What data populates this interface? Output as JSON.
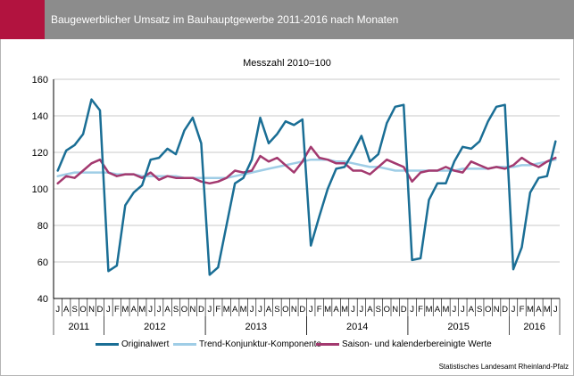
{
  "header": {
    "title": "Baugewerblicher Umsatz im Bauhauptgewerbe 2011-2016 nach Monaten",
    "bar_color": "#8c8c8c",
    "accent_color": "#b2133f"
  },
  "source": "Statistisches Landesamt Rheinland-Pfalz",
  "chart_data": {
    "type": "line",
    "subtitle": "Messzahl 2010=100",
    "ylim": [
      40,
      160
    ],
    "yticks": [
      40,
      60,
      80,
      100,
      120,
      140,
      160
    ],
    "grid": true,
    "legend_position": "bottom",
    "month_labels": [
      "J",
      "A",
      "S",
      "O",
      "N",
      "D",
      "J",
      "F",
      "M",
      "A",
      "M",
      "J",
      "J",
      "A",
      "S",
      "O",
      "N",
      "D",
      "J",
      "F",
      "M",
      "A",
      "M",
      "J",
      "J",
      "A",
      "S",
      "O",
      "N",
      "D",
      "J",
      "F",
      "M",
      "A",
      "M",
      "J",
      "J",
      "A",
      "S",
      "O",
      "N",
      "D",
      "J",
      "F",
      "M",
      "A",
      "M",
      "J",
      "J",
      "A",
      "S",
      "O",
      "N",
      "D",
      "J",
      "F",
      "M",
      "A",
      "M",
      "J"
    ],
    "year_labels": [
      {
        "label": "2011",
        "start": 0,
        "count": 6
      },
      {
        "label": "2012",
        "start": 6,
        "count": 12
      },
      {
        "label": "2013",
        "start": 18,
        "count": 12
      },
      {
        "label": "2014",
        "start": 30,
        "count": 12
      },
      {
        "label": "2015",
        "start": 42,
        "count": 12
      },
      {
        "label": "2016",
        "start": 54,
        "count": 6
      }
    ],
    "series": [
      {
        "name": "Originalwert",
        "color": "#1a6e95",
        "values": [
          110,
          121,
          124,
          130,
          149,
          143,
          55,
          58,
          91,
          98,
          102,
          116,
          117,
          122,
          119,
          132,
          139,
          125,
          53,
          57,
          80,
          103,
          106,
          116,
          139,
          125,
          130,
          137,
          135,
          138,
          69,
          85,
          100,
          111,
          112,
          120,
          129,
          115,
          119,
          136,
          145,
          146,
          61,
          62,
          94,
          103,
          103,
          115,
          123,
          122,
          126,
          137,
          145,
          146,
          56,
          68,
          98,
          106,
          107,
          126
        ]
      },
      {
        "name": "Trend-Konjunktur-Komponente",
        "color": "#9fcde6",
        "values": [
          107,
          108,
          109,
          109,
          109,
          109,
          109,
          108,
          108,
          108,
          107,
          107,
          107,
          107,
          107,
          106,
          106,
          106,
          106,
          106,
          106,
          107,
          108,
          109,
          110,
          111,
          112,
          113,
          114,
          115,
          116,
          116,
          116,
          115,
          115,
          114,
          113,
          112,
          112,
          111,
          110,
          110,
          110,
          110,
          110,
          110,
          110,
          110,
          111,
          111,
          111,
          111,
          112,
          112,
          112,
          113,
          113,
          114,
          115,
          116
        ]
      },
      {
        "name": "Saison- und kalenderbereinigte Werte",
        "color": "#a3396f",
        "values": [
          103,
          107,
          106,
          110,
          114,
          116,
          109,
          107,
          108,
          108,
          106,
          109,
          105,
          107,
          106,
          106,
          106,
          104,
          103,
          104,
          106,
          110,
          109,
          110,
          118,
          115,
          117,
          113,
          109,
          115,
          123,
          117,
          116,
          114,
          114,
          110,
          110,
          108,
          112,
          116,
          114,
          112,
          104,
          109,
          110,
          110,
          112,
          110,
          109,
          115,
          113,
          111,
          112,
          111,
          113,
          117,
          114,
          112,
          115,
          117
        ]
      }
    ]
  }
}
